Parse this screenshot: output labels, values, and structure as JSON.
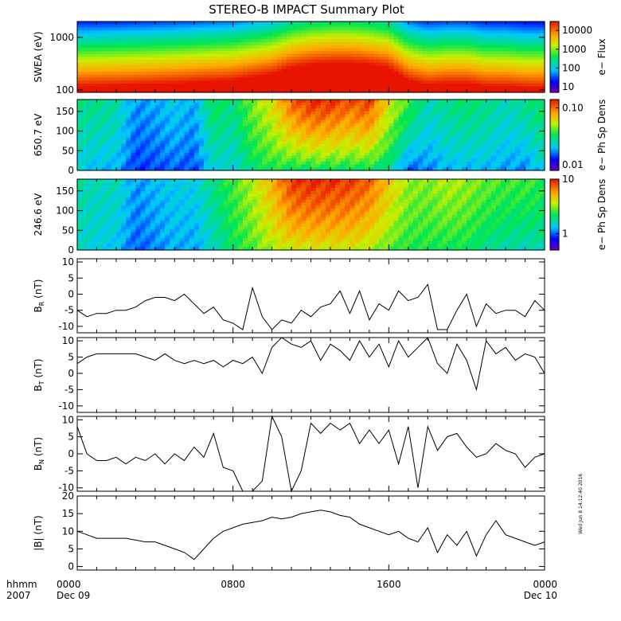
{
  "title": "STEREO-B IMPACT Summary Plot",
  "timestamp": "Wed Jun 8 14:12:40 2016",
  "time_axis": {
    "label_line1": "hhmm",
    "label_line2": "2007",
    "ticks": [
      {
        "hour": 0,
        "line1": "0000",
        "line2": "Dec 09"
      },
      {
        "hour": 8,
        "line1": "0800",
        "line2": ""
      },
      {
        "hour": 16,
        "line1": "1600",
        "line2": ""
      },
      {
        "hour": 24,
        "line1": "0000",
        "line2": "Dec 10"
      }
    ]
  },
  "chart_data": [
    {
      "type": "heatmap",
      "ylabel": "SWEA (eV)",
      "yscale": "log",
      "ylim": [
        90,
        2000
      ],
      "yticks": [
        {
          "v": 100,
          "label": "100"
        },
        {
          "v": 1000,
          "label": "1000"
        }
      ],
      "colorbar": {
        "label": "e− Flux",
        "scale": "log",
        "range": [
          5,
          30000
        ],
        "ticks": [
          {
            "v": 10,
            "label": "10"
          },
          {
            "v": 100,
            "label": "100"
          },
          {
            "v": 1000,
            "label": "1000"
          },
          {
            "v": 10000,
            "label": "10000"
          }
        ]
      },
      "profile": {
        "hours": [
          0,
          3,
          5,
          8,
          10,
          11,
          12,
          13,
          14,
          15,
          16,
          17,
          18,
          19,
          20,
          21,
          22,
          23,
          24
        ],
        "intensity": [
          0.62,
          0.64,
          0.66,
          0.7,
          0.78,
          0.86,
          0.9,
          0.92,
          0.92,
          0.9,
          0.86,
          0.7,
          0.64,
          0.66,
          0.66,
          0.62,
          0.62,
          0.6,
          0.6
        ]
      }
    },
    {
      "type": "heatmap",
      "ylabel": "650.7 eV",
      "ylim": [
        0,
        180
      ],
      "yticks": [
        {
          "v": 0,
          "label": "0"
        },
        {
          "v": 50,
          "label": "50"
        },
        {
          "v": 100,
          "label": "100"
        },
        {
          "v": 150,
          "label": "150"
        }
      ],
      "colorbar": {
        "label": "e− Ph Sp Dens",
        "scale": "log",
        "range": [
          0.008,
          0.14
        ],
        "ticks": [
          {
            "v": 0.01,
            "label": "0.01"
          },
          {
            "v": 0.1,
            "label": "0.10"
          }
        ]
      },
      "profile": {
        "hours": [
          0,
          1,
          2,
          3,
          4,
          5,
          6,
          7,
          8,
          9,
          10,
          11,
          12,
          13,
          14,
          15,
          16,
          17,
          18,
          19,
          20,
          21,
          22,
          23,
          24
        ],
        "top": [
          0.45,
          0.45,
          0.42,
          0.28,
          0.3,
          0.35,
          0.3,
          0.5,
          0.45,
          0.6,
          0.7,
          0.9,
          0.98,
          0.97,
          0.92,
          0.95,
          0.7,
          0.55,
          0.4,
          0.45,
          0.48,
          0.45,
          0.4,
          0.45,
          0.5
        ],
        "bottom": [
          0.35,
          0.3,
          0.3,
          0.18,
          0.2,
          0.22,
          0.2,
          0.35,
          0.35,
          0.45,
          0.5,
          0.45,
          0.45,
          0.45,
          0.45,
          0.45,
          0.4,
          0.2,
          0.25,
          0.3,
          0.3,
          0.3,
          0.28,
          0.25,
          0.35
        ]
      }
    },
    {
      "type": "heatmap",
      "ylabel": "246.6 eV",
      "ylim": [
        0,
        180
      ],
      "yticks": [
        {
          "v": 0,
          "label": "0"
        },
        {
          "v": 50,
          "label": "50"
        },
        {
          "v": 100,
          "label": "100"
        },
        {
          "v": 150,
          "label": "150"
        }
      ],
      "colorbar": {
        "label": "e− Ph Sp Dens",
        "scale": "log",
        "range": [
          0.5,
          10
        ],
        "ticks": [
          {
            "v": 1,
            "label": "1"
          },
          {
            "v": 10,
            "label": "10"
          }
        ]
      },
      "profile": {
        "hours": [
          0,
          1,
          2,
          3,
          4,
          5,
          6,
          7,
          8,
          9,
          10,
          11,
          12,
          13,
          14,
          15,
          16,
          17,
          18,
          19,
          20,
          21,
          22,
          23,
          24
        ],
        "top": [
          0.42,
          0.4,
          0.4,
          0.28,
          0.32,
          0.35,
          0.35,
          0.45,
          0.55,
          0.65,
          0.78,
          0.95,
          0.98,
          0.97,
          0.95,
          0.9,
          0.75,
          0.62,
          0.6,
          0.65,
          0.62,
          0.58,
          0.55,
          0.55,
          0.52
        ],
        "bottom": [
          0.38,
          0.35,
          0.32,
          0.22,
          0.25,
          0.3,
          0.28,
          0.38,
          0.48,
          0.55,
          0.62,
          0.65,
          0.65,
          0.65,
          0.65,
          0.62,
          0.55,
          0.5,
          0.5,
          0.48,
          0.48,
          0.42,
          0.4,
          0.38,
          0.4
        ]
      }
    },
    {
      "type": "line",
      "ylabel_main": "B",
      "ylabel_sub": "R",
      "ylabel_unit": " (nT)",
      "ylim": [
        -12,
        11
      ],
      "yticks": [
        {
          "v": -10,
          "label": "-10"
        },
        {
          "v": -5,
          "label": "-5"
        },
        {
          "v": 0,
          "label": "0"
        },
        {
          "v": 5,
          "label": "5"
        },
        {
          "v": 10,
          "label": "10"
        }
      ],
      "x": [
        0,
        0.5,
        1,
        1.5,
        2,
        2.5,
        3,
        3.5,
        4,
        4.5,
        5,
        5.5,
        6,
        6.5,
        7,
        7.5,
        8,
        8.5,
        9,
        9.5,
        10,
        10.5,
        11,
        11.5,
        12,
        12.5,
        13,
        13.5,
        14,
        14.5,
        15,
        15.5,
        16,
        16.5,
        17,
        17.5,
        18,
        18.5,
        19,
        19.5,
        20,
        20.5,
        21,
        21.5,
        22,
        22.5,
        23,
        23.5,
        24
      ],
      "y": [
        -5,
        -7,
        -6,
        -6,
        -5,
        -5,
        -4,
        -2,
        -1,
        -1,
        -2,
        0,
        -3,
        -6,
        -4,
        -8,
        -9,
        -11,
        2,
        -7,
        -11,
        -8,
        -9,
        -5,
        -7,
        -4,
        -3,
        1,
        -6,
        1,
        -8,
        -3,
        -5,
        1,
        -2,
        -1,
        3,
        -11,
        -11,
        -5,
        0,
        -10,
        -3,
        -6,
        -5,
        -5,
        -7,
        -2,
        -5
      ]
    },
    {
      "type": "line",
      "ylabel_main": "B",
      "ylabel_sub": "T",
      "ylabel_unit": " (nT)",
      "ylim": [
        -12,
        11
      ],
      "yticks": [
        {
          "v": -10,
          "label": "-10"
        },
        {
          "v": -5,
          "label": "-5"
        },
        {
          "v": 0,
          "label": "0"
        },
        {
          "v": 5,
          "label": "5"
        },
        {
          "v": 10,
          "label": "10"
        }
      ],
      "x": [
        0,
        0.5,
        1,
        1.5,
        2,
        2.5,
        3,
        3.5,
        4,
        4.5,
        5,
        5.5,
        6,
        6.5,
        7,
        7.5,
        8,
        8.5,
        9,
        9.5,
        10,
        10.5,
        11,
        11.5,
        12,
        12.5,
        13,
        13.5,
        14,
        14.5,
        15,
        15.5,
        16,
        16.5,
        17,
        17.5,
        18,
        18.5,
        19,
        19.5,
        20,
        20.5,
        21,
        21.5,
        22,
        22.5,
        23,
        23.5,
        24
      ],
      "y": [
        3,
        5,
        6,
        6,
        6,
        6,
        6,
        5,
        4,
        6,
        4,
        3,
        4,
        3,
        4,
        2,
        4,
        3,
        5,
        0,
        8,
        11,
        9,
        8,
        10,
        4,
        9,
        7,
        4,
        10,
        5,
        9,
        2,
        10,
        5,
        8,
        11,
        3,
        0,
        9,
        4,
        -5,
        10,
        6,
        8,
        4,
        6,
        5,
        0
      ]
    },
    {
      "type": "line",
      "ylabel_main": "B",
      "ylabel_sub": "N",
      "ylabel_unit": " (nT)",
      "ylim": [
        -11,
        11
      ],
      "yticks": [
        {
          "v": -10,
          "label": "-10"
        },
        {
          "v": -5,
          "label": "-5"
        },
        {
          "v": 0,
          "label": "0"
        },
        {
          "v": 5,
          "label": "5"
        },
        {
          "v": 10,
          "label": "10"
        }
      ],
      "x": [
        0,
        0.5,
        1,
        1.5,
        2,
        2.5,
        3,
        3.5,
        4,
        4.5,
        5,
        5.5,
        6,
        6.5,
        7,
        7.5,
        8,
        8.5,
        9,
        9.5,
        10,
        10.5,
        11,
        11.5,
        12,
        12.5,
        13,
        13.5,
        14,
        14.5,
        15,
        15.5,
        16,
        16.5,
        17,
        17.5,
        18,
        18.5,
        19,
        19.5,
        20,
        20.5,
        21,
        21.5,
        22,
        22.5,
        23,
        23.5,
        24
      ],
      "y": [
        8,
        0,
        -2,
        -2,
        -1,
        -3,
        -1,
        -2,
        0,
        -3,
        0,
        -2,
        2,
        -1,
        6,
        -4,
        -5,
        -11,
        -11,
        -8,
        11,
        5,
        -11,
        -5,
        9,
        6,
        9,
        7,
        9,
        3,
        7,
        3,
        7,
        -3,
        8,
        -10,
        8,
        1,
        5,
        6,
        2,
        -1,
        0,
        3,
        1,
        0,
        -4,
        -1,
        0
      ]
    },
    {
      "type": "line",
      "ylabel_main": "|B|",
      "ylabel_sub": "",
      "ylabel_unit": " (nT)",
      "ylim": [
        -1,
        20
      ],
      "yticks": [
        {
          "v": 0,
          "label": "0"
        },
        {
          "v": 5,
          "label": "5"
        },
        {
          "v": 10,
          "label": "10"
        },
        {
          "v": 15,
          "label": "15"
        },
        {
          "v": 20,
          "label": "20"
        }
      ],
      "x": [
        0,
        0.5,
        1,
        1.5,
        2,
        2.5,
        3,
        3.5,
        4,
        4.5,
        5,
        5.5,
        6,
        6.5,
        7,
        7.5,
        8,
        8.5,
        9,
        9.5,
        10,
        10.5,
        11,
        11.5,
        12,
        12.5,
        13,
        13.5,
        14,
        14.5,
        15,
        15.5,
        16,
        16.5,
        17,
        17.5,
        18,
        18.5,
        19,
        19.5,
        20,
        20.5,
        21,
        21.5,
        22,
        22.5,
        23,
        23.5,
        24
      ],
      "y": [
        10,
        9,
        8,
        8,
        8,
        8,
        7.5,
        7,
        7,
        6,
        5,
        4,
        2,
        5,
        8,
        10,
        11,
        12,
        12.5,
        13,
        14,
        13.5,
        14,
        15,
        15.5,
        16,
        15.5,
        14.5,
        14,
        12,
        11,
        10,
        9,
        10,
        8,
        7,
        11,
        4,
        9,
        6,
        10,
        3,
        9,
        13,
        9,
        8,
        7,
        6,
        7
      ]
    }
  ]
}
